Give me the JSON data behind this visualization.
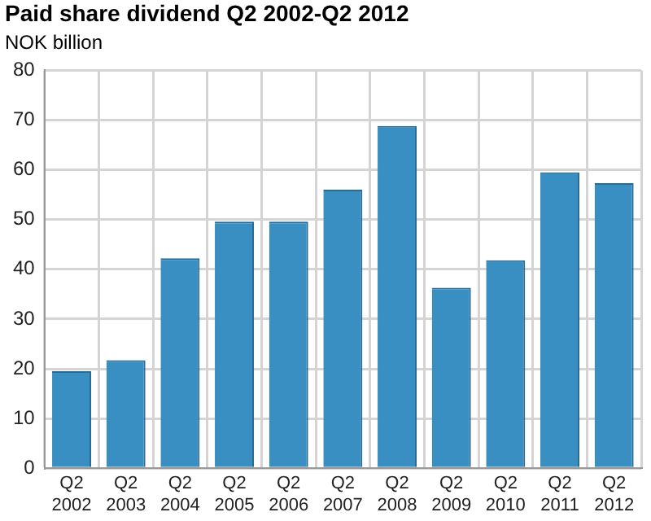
{
  "chart_data": {
    "type": "bar",
    "title": "Paid share dividend Q2 2002-Q2 2012",
    "ylabel": "NOK billion",
    "categories": [
      "Q2 2002",
      "Q2 2003",
      "Q2 2004",
      "Q2 2005",
      "Q2 2006",
      "Q2 2007",
      "Q2 2008",
      "Q2 2009",
      "Q2 2010",
      "Q2 2011",
      "Q2 2012"
    ],
    "values": [
      19.5,
      21.7,
      42.2,
      49.6,
      49.6,
      56,
      68.8,
      36.3,
      41.8,
      59.5,
      57.3
    ],
    "color": "#3a8fc2",
    "ylim": [
      0,
      80
    ],
    "yticks": [
      0,
      10,
      20,
      30,
      40,
      50,
      60,
      70,
      80
    ],
    "grid": true,
    "legend": false
  }
}
